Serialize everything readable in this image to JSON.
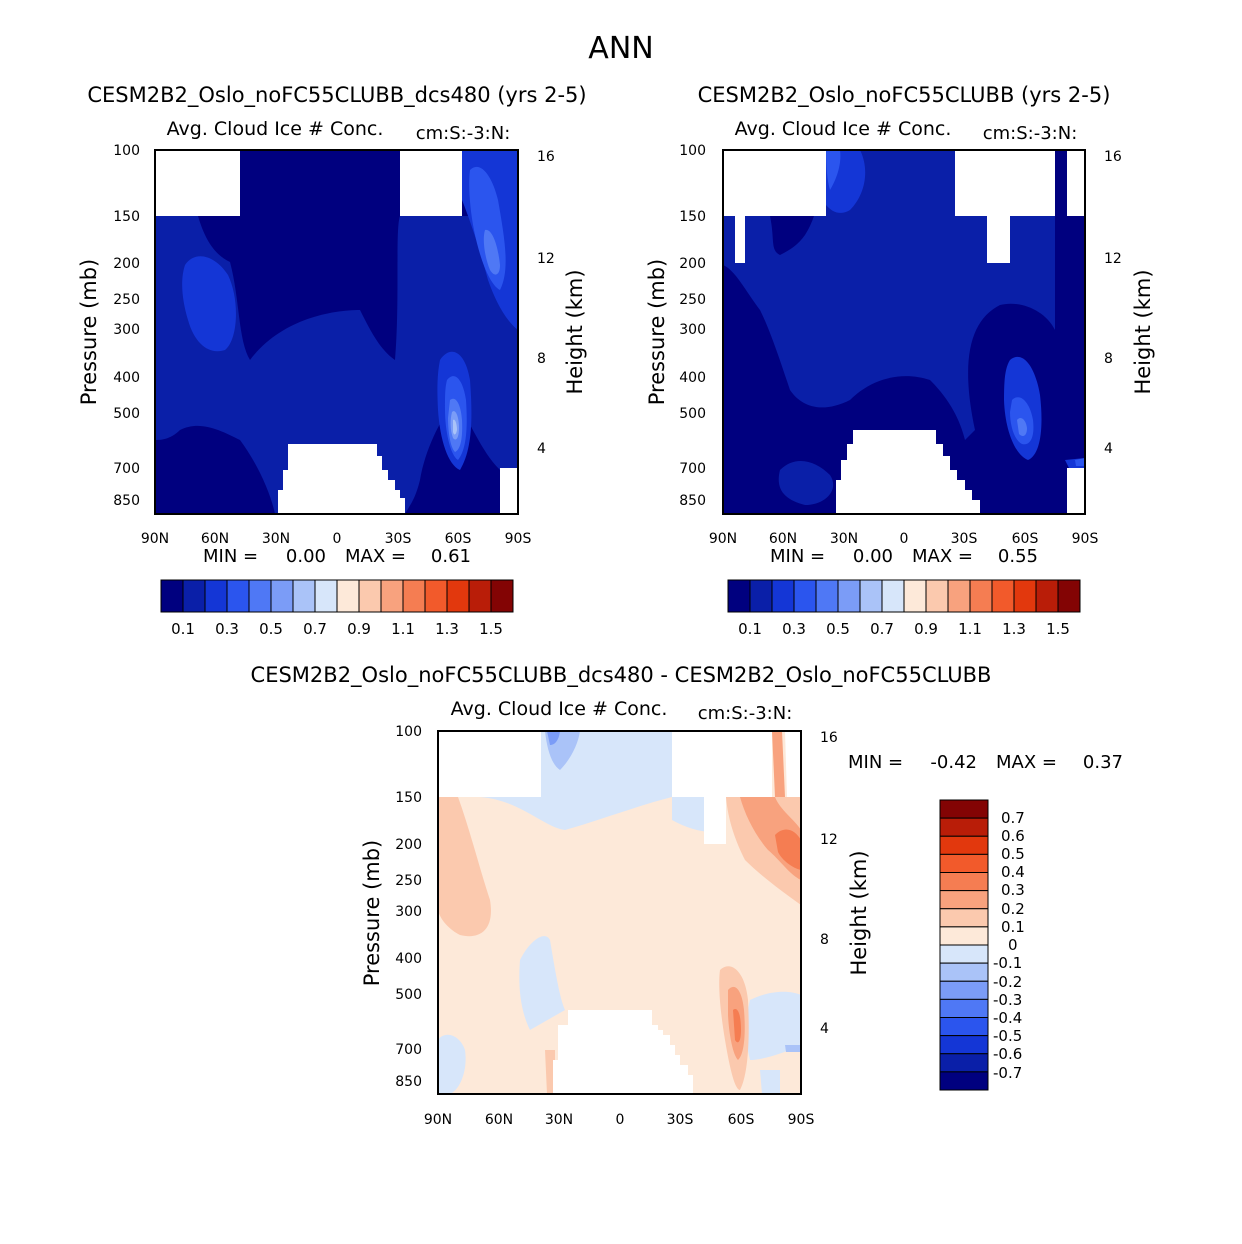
{
  "figure": {
    "title": "ANN"
  },
  "colors": {
    "levels_abs": [
      "#00007f",
      "#0a1fa8",
      "#1436d6",
      "#2b55ee",
      "#4f78f5",
      "#7b9cf7",
      "#aac3f8",
      "#d7e6fa",
      "#fde9d9",
      "#fbc9ae",
      "#f8a27e",
      "#f57d52",
      "#f25a2b",
      "#e2380d",
      "#b91d08",
      "#830404"
    ],
    "levels_diff": [
      "#00007f",
      "#0a1fa8",
      "#1436d6",
      "#2b55ee",
      "#4f78f5",
      "#7b9cf7",
      "#aac3f8",
      "#d7e6fa",
      "#fde9d9",
      "#fbc9ae",
      "#f8a27e",
      "#f57d52",
      "#f25a2b",
      "#e2380d",
      "#b91d08",
      "#830404"
    ]
  },
  "chart_data": [
    {
      "type": "heatmap",
      "title": "CESM2B2_Oslo_noFC55CLUBB_dcs480 (yrs 2-5)",
      "subtitle": "Avg. Cloud Ice # Conc.",
      "units": "cm:S:-3:N:",
      "ylabel": "Pressure (mb)",
      "ylabel_right": "Height (km)",
      "x_ticks": [
        "90N",
        "60N",
        "30N",
        "0",
        "30S",
        "60S",
        "90S"
      ],
      "y_ticks": [
        "100",
        "150",
        "200",
        "250",
        "300",
        "400",
        "500",
        "700",
        "850"
      ],
      "y_ticks_right": [
        "16",
        "12",
        "8",
        "4"
      ],
      "min_label": "MIN =",
      "min_value": "0.00",
      "max_label": "MAX =",
      "max_value": "0.61",
      "min": 0.0,
      "max": 0.61,
      "colorbar_labels": [
        "0.1",
        "0.3",
        "0.5",
        "0.7",
        "0.9",
        "1.1",
        "1.3",
        "1.5"
      ],
      "colorbar_levels": [
        0.1,
        0.2,
        0.3,
        0.4,
        0.5,
        0.6,
        0.7,
        0.8,
        0.9,
        1.0,
        1.1,
        1.2,
        1.3,
        1.4,
        1.5
      ]
    },
    {
      "type": "heatmap",
      "title": "CESM2B2_Oslo_noFC55CLUBB (yrs 2-5)",
      "subtitle": "Avg. Cloud Ice # Conc.",
      "units": "cm:S:-3:N:",
      "ylabel": "Pressure (mb)",
      "ylabel_right": "Height (km)",
      "x_ticks": [
        "90N",
        "60N",
        "30N",
        "0",
        "30S",
        "60S",
        "90S"
      ],
      "y_ticks": [
        "100",
        "150",
        "200",
        "250",
        "300",
        "400",
        "500",
        "700",
        "850"
      ],
      "y_ticks_right": [
        "16",
        "12",
        "8",
        "4"
      ],
      "min_label": "MIN =",
      "min_value": "0.00",
      "max_label": "MAX =",
      "max_value": "0.55",
      "min": 0.0,
      "max": 0.55,
      "colorbar_labels": [
        "0.1",
        "0.3",
        "0.5",
        "0.7",
        "0.9",
        "1.1",
        "1.3",
        "1.5"
      ],
      "colorbar_levels": [
        0.1,
        0.2,
        0.3,
        0.4,
        0.5,
        0.6,
        0.7,
        0.8,
        0.9,
        1.0,
        1.1,
        1.2,
        1.3,
        1.4,
        1.5
      ]
    },
    {
      "type": "heatmap",
      "title": "CESM2B2_Oslo_noFC55CLUBB_dcs480 - CESM2B2_Oslo_noFC55CLUBB",
      "subtitle": "Avg. Cloud Ice # Conc.",
      "units": "cm:S:-3:N:",
      "ylabel": "Pressure (mb)",
      "ylabel_right": "Height (km)",
      "x_ticks": [
        "90N",
        "60N",
        "30N",
        "0",
        "30S",
        "60S",
        "90S"
      ],
      "y_ticks": [
        "100",
        "150",
        "200",
        "250",
        "300",
        "400",
        "500",
        "700",
        "850"
      ],
      "y_ticks_right": [
        "16",
        "12",
        "8",
        "4"
      ],
      "min_label": "MIN =",
      "min_value": "-0.42",
      "max_label": "MAX =",
      "max_value": "0.37",
      "min": -0.42,
      "max": 0.37,
      "colorbar_labels": [
        "0.7",
        "0.6",
        "0.5",
        "0.4",
        "0.3",
        "0.2",
        "0.1",
        "0",
        "-0.1",
        "-0.2",
        "-0.3",
        "-0.4",
        "-0.5",
        "-0.6",
        "-0.7"
      ],
      "colorbar_levels": [
        -0.7,
        -0.6,
        -0.5,
        -0.4,
        -0.3,
        -0.2,
        -0.1,
        0,
        0.1,
        0.2,
        0.3,
        0.4,
        0.5,
        0.6,
        0.7
      ]
    }
  ]
}
